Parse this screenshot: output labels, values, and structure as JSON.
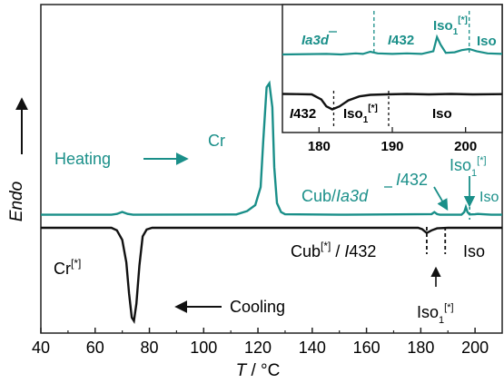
{
  "chart_data": {
    "type": "line",
    "xlabel": "T / °C",
    "ylabel": "Endo",
    "xlim": [
      40,
      210
    ],
    "x_ticks": [
      "40",
      "60",
      "80",
      "100",
      "120",
      "140",
      "160",
      "180",
      "200"
    ],
    "colors": {
      "heating": "#1a8f89",
      "cooling": "#111111"
    },
    "series": [
      {
        "name": "Heating",
        "points": [
          [
            40,
            0.2
          ],
          [
            60,
            0.2
          ],
          [
            66,
            0.2
          ],
          [
            68,
            0.6
          ],
          [
            70,
            1.6
          ],
          [
            72,
            0.6
          ],
          [
            74,
            0.2
          ],
          [
            112,
            0.3
          ],
          [
            116,
            2.0
          ],
          [
            119,
            5.0
          ],
          [
            121,
            14
          ],
          [
            122,
            38
          ],
          [
            123.2,
            64
          ],
          [
            124.2,
            66
          ],
          [
            125.3,
            54
          ],
          [
            126,
            24
          ],
          [
            127,
            6
          ],
          [
            128.5,
            1.5
          ],
          [
            130,
            0.4
          ],
          [
            150,
            0.2
          ],
          [
            184,
            0.5
          ],
          [
            185,
            1.5
          ],
          [
            186,
            0.5
          ],
          [
            187,
            0.2
          ],
          [
            195,
            0.2
          ],
          [
            196,
            1.5
          ],
          [
            196.6,
            4.0
          ],
          [
            197.2,
            1.5
          ],
          [
            198,
            0.3
          ],
          [
            200,
            0.4
          ],
          [
            201,
            0.6
          ],
          [
            203,
            0.4
          ],
          [
            206,
            0.2
          ],
          [
            210,
            0.2
          ]
        ]
      },
      {
        "name": "Cooling",
        "points": [
          [
            40,
            0
          ],
          [
            66,
            0
          ],
          [
            68,
            -1.5
          ],
          [
            70,
            -7
          ],
          [
            71.5,
            -20
          ],
          [
            72.5,
            -38
          ],
          [
            73.5,
            -52
          ],
          [
            74.3,
            -54
          ],
          [
            75.2,
            -44
          ],
          [
            76.3,
            -22
          ],
          [
            77.5,
            -5
          ],
          [
            79,
            -1
          ],
          [
            81,
            0
          ],
          [
            179,
            0
          ],
          [
            180.5,
            -0.8
          ],
          [
            182.2,
            -3.0
          ],
          [
            184,
            -1.5
          ],
          [
            186,
            -0.3
          ],
          [
            190,
            0
          ],
          [
            210,
            0
          ]
        ]
      }
    ],
    "annotations": {
      "heating": "Heating",
      "cooling": "Cooling",
      "cr": "Cr",
      "cr_star": "Cr[*]",
      "cub_la3d": "Cub/Ia3d",
      "i432_heat": "I432",
      "iso1_star_heat": "Iso1[*]",
      "iso_heat": "Iso",
      "cub_star_i432": "Cub[*] / I432",
      "iso_cool": "Iso",
      "iso1_star_cool": "Iso1[*]"
    },
    "inset": {
      "xlim": [
        175,
        205
      ],
      "x_ticks": [
        "180",
        "190",
        "200"
      ],
      "heating_labels": [
        "Ia3d",
        "I432",
        "Iso1[*]",
        "Iso"
      ],
      "cooling_labels": [
        "I432",
        "Iso1[*]",
        "Iso"
      ],
      "series": [
        {
          "name": "Heating",
          "points": [
            [
              175,
              0
            ],
            [
              181,
              0.1
            ],
            [
              183,
              0
            ],
            [
              185,
              0.2
            ],
            [
              186,
              0.1
            ],
            [
              187,
              0.5
            ],
            [
              188,
              0.2
            ],
            [
              190,
              0.1
            ],
            [
              192,
              0.2
            ],
            [
              194,
              0.1
            ],
            [
              195.6,
              0.6
            ],
            [
              196.1,
              3.2
            ],
            [
              196.6,
              1.8
            ],
            [
              197.3,
              0.3
            ],
            [
              198.5,
              0.4
            ],
            [
              199.5,
              0.8
            ],
            [
              200.5,
              1.0
            ],
            [
              201.5,
              0.6
            ],
            [
              203,
              0.2
            ],
            [
              205,
              0.1
            ]
          ]
        },
        {
          "name": "Cooling",
          "points": [
            [
              175,
              0.1
            ],
            [
              177,
              0.05
            ],
            [
              179,
              0
            ],
            [
              180.3,
              -1
            ],
            [
              181,
              -2.4
            ],
            [
              181.8,
              -3
            ],
            [
              182.8,
              -2.4
            ],
            [
              184,
              -1.2
            ],
            [
              185.5,
              -0.4
            ],
            [
              187,
              -0.1
            ],
            [
              189,
              0
            ],
            [
              192,
              0.1
            ],
            [
              195,
              0
            ],
            [
              198,
              0.1
            ],
            [
              201,
              0
            ],
            [
              205,
              0.05
            ]
          ]
        }
      ]
    }
  }
}
